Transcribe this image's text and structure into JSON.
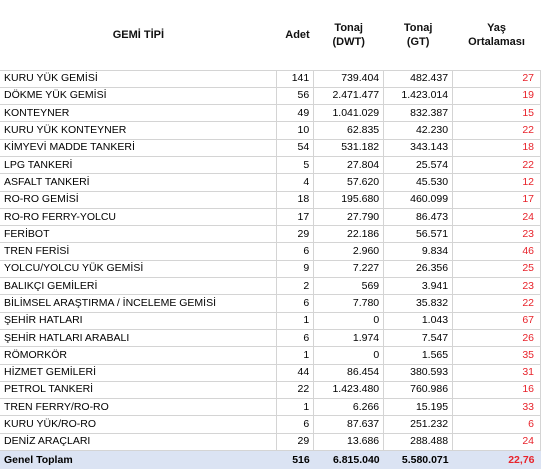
{
  "header": {
    "type": "GEMİ TİPİ",
    "count": "Adet",
    "dwt_line1": "Tonaj",
    "dwt_line2": "(DWT)",
    "gt_line1": "Tonaj",
    "gt_line2": "(GT)",
    "age_line1": "Yaş",
    "age_line2": "Ortalaması"
  },
  "rows": [
    {
      "type": "KURU YÜK GEMİSİ",
      "count": "141",
      "dwt": "739.404",
      "gt": "482.437",
      "age": "27"
    },
    {
      "type": "DÖKME YÜK GEMİSİ",
      "count": "56",
      "dwt": "2.471.477",
      "gt": "1.423.014",
      "age": "19"
    },
    {
      "type": "KONTEYNER",
      "count": "49",
      "dwt": "1.041.029",
      "gt": "832.387",
      "age": "15"
    },
    {
      "type": "KURU YÜK KONTEYNER",
      "count": "10",
      "dwt": "62.835",
      "gt": "42.230",
      "age": "22"
    },
    {
      "type": "KİMYEVİ MADDE TANKERİ",
      "count": "54",
      "dwt": "531.182",
      "gt": "343.143",
      "age": "18"
    },
    {
      "type": "LPG TANKERİ",
      "count": "5",
      "dwt": "27.804",
      "gt": "25.574",
      "age": "22"
    },
    {
      "type": "ASFALT TANKERİ",
      "count": "4",
      "dwt": "57.620",
      "gt": "45.530",
      "age": "12"
    },
    {
      "type": "RO-RO GEMİSİ",
      "count": "18",
      "dwt": "195.680",
      "gt": "460.099",
      "age": "17"
    },
    {
      "type": "RO-RO FERRY-YOLCU",
      "count": "17",
      "dwt": "27.790",
      "gt": "86.473",
      "age": "24"
    },
    {
      "type": "FERİBOT",
      "count": "29",
      "dwt": "22.186",
      "gt": "56.571",
      "age": "23"
    },
    {
      "type": "TREN FERİSİ",
      "count": "6",
      "dwt": "2.960",
      "gt": "9.834",
      "age": "46"
    },
    {
      "type": "YOLCU/YOLCU YÜK GEMİSİ",
      "count": "9",
      "dwt": "7.227",
      "gt": "26.356",
      "age": "25"
    },
    {
      "type": "BALIKÇI GEMİLERİ",
      "count": "2",
      "dwt": "569",
      "gt": "3.941",
      "age": "23"
    },
    {
      "type": "BİLİMSEL ARAŞTIRMA / İNCELEME GEMİSİ",
      "count": "6",
      "dwt": "7.780",
      "gt": "35.832",
      "age": "22"
    },
    {
      "type": "ŞEHİR HATLARI",
      "count": "1",
      "dwt": "0",
      "gt": "1.043",
      "age": "67"
    },
    {
      "type": "ŞEHİR HATLARI ARABALI",
      "count": "6",
      "dwt": "1.974",
      "gt": "7.547",
      "age": "26"
    },
    {
      "type": "RÖMORKÖR",
      "count": "1",
      "dwt": "0",
      "gt": "1.565",
      "age": "35"
    },
    {
      "type": "HİZMET GEMİLERİ",
      "count": "44",
      "dwt": "86.454",
      "gt": "380.593",
      "age": "31"
    },
    {
      "type": "PETROL TANKERİ",
      "count": "22",
      "dwt": "1.423.480",
      "gt": "760.986",
      "age": "16"
    },
    {
      "type": "TREN FERRY/RO-RO",
      "count": "1",
      "dwt": "6.266",
      "gt": "15.195",
      "age": "33"
    },
    {
      "type": "KURU YÜK/RO-RO",
      "count": "6",
      "dwt": "87.637",
      "gt": "251.232",
      "age": "6"
    },
    {
      "type": "DENİZ ARAÇLARI",
      "count": "29",
      "dwt": "13.686",
      "gt": "288.488",
      "age": "24"
    }
  ],
  "total": {
    "type": "Genel Toplam",
    "count": "516",
    "dwt": "6.815.040",
    "gt": "5.580.071",
    "age": "22,76"
  },
  "colors": {
    "age_text": "#e8232b",
    "total_bg": "#dbe3f3",
    "grid": "#d4d4d4"
  }
}
